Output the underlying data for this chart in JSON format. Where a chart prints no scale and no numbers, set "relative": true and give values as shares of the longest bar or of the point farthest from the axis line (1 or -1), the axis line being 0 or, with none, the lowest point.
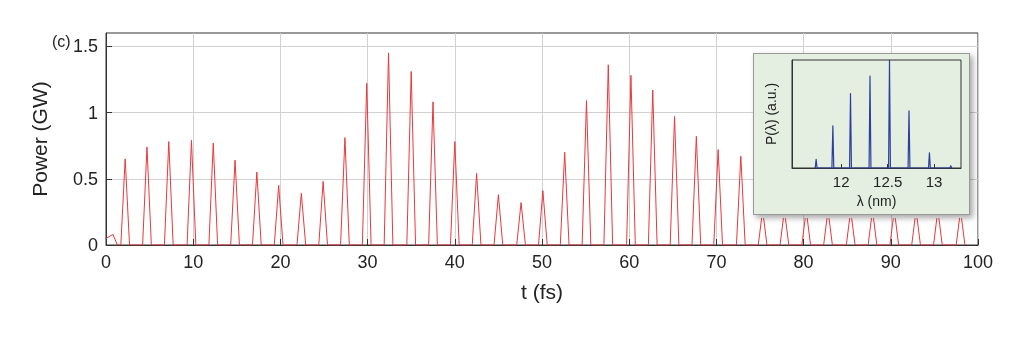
{
  "chart_data": [
    {
      "type": "line",
      "xlabel": "t (fs)",
      "ylabel": "Power (GW)",
      "annotations": [
        "(c)"
      ],
      "color": "#e8383d",
      "x": [
        0,
        0.8,
        1.3,
        1.7,
        2.2,
        2.7,
        4.2,
        4.7,
        5.2,
        6.7,
        7.2,
        7.7,
        9.3,
        9.8,
        10.3,
        11.8,
        12.3,
        12.8,
        14.3,
        14.8,
        15.3,
        16.8,
        17.3,
        17.8,
        19.3,
        19.8,
        20.3,
        21.9,
        22.4,
        22.9,
        24.4,
        24.9,
        25.4,
        26.9,
        27.4,
        27.9,
        29.4,
        29.9,
        30.4,
        31.9,
        32.4,
        32.9,
        34.5,
        35.0,
        35.5,
        37.0,
        37.5,
        38.0,
        39.5,
        40.0,
        40.5,
        42.0,
        42.5,
        43.0,
        44.5,
        45.0,
        45.5,
        47.1,
        47.6,
        48.1,
        49.6,
        50.1,
        50.6,
        52.1,
        52.6,
        53.1,
        54.6,
        55.1,
        55.6,
        57.1,
        57.6,
        58.1,
        59.7,
        60.2,
        60.7,
        62.2,
        62.7,
        63.2,
        64.7,
        65.2,
        65.7,
        67.2,
        67.7,
        68.2,
        69.7,
        70.2,
        70.7,
        72.3,
        72.8,
        73.3,
        74.8,
        75.18,
        75.3,
        75.42,
        75.8,
        77.3,
        77.68,
        77.8,
        77.92,
        78.3,
        79.8,
        80.18,
        80.3,
        80.42,
        80.8,
        82.3,
        82.68,
        82.8,
        82.92,
        83.3,
        84.9,
        85.28,
        85.4,
        85.52,
        85.9,
        87.4,
        87.78,
        87.9,
        88.02,
        88.4,
        89.9,
        90.28,
        90.4,
        90.52,
        90.9,
        92.4,
        92.78,
        92.9,
        93.02,
        93.4,
        94.9,
        95.28,
        95.4,
        95.52,
        95.9,
        97.5,
        97.88,
        98.0,
        98.12,
        98.5
      ],
      "values": [
        0.05,
        0.08,
        0,
        0,
        0.65,
        0,
        0,
        0.74,
        0,
        0,
        0.78,
        0,
        0,
        0.79,
        0,
        0,
        0.77,
        0,
        0,
        0.64,
        0,
        0,
        0.55,
        0,
        0,
        0.45,
        0,
        0,
        0.39,
        0,
        0,
        0.48,
        0,
        0,
        0.81,
        0,
        0,
        1.22,
        0,
        0,
        1.45,
        0,
        0,
        1.31,
        0,
        0,
        1.08,
        0,
        0,
        0.78,
        0,
        0,
        0.54,
        0,
        0,
        0.38,
        0,
        0,
        0.32,
        0,
        0,
        0.41,
        0,
        0,
        0.7,
        0,
        0,
        1.09,
        0,
        0,
        1.36,
        0,
        0,
        1.28,
        0,
        0,
        1.17,
        0,
        0,
        0.97,
        0,
        0,
        0.82,
        0,
        0,
        0.72,
        0,
        0,
        0.67,
        0,
        0,
        0.2,
        null,
        0.2,
        0,
        0,
        0.2,
        null,
        0.2,
        0,
        0,
        0.2,
        null,
        0.2,
        0,
        0,
        0.2,
        null,
        0.2,
        0,
        0,
        0.2,
        null,
        0.2,
        0,
        0,
        0.2,
        null,
        0.2,
        0,
        0,
        0.2,
        null,
        0.2,
        0,
        0,
        0.2,
        null,
        0.2,
        0,
        0,
        0.2,
        null,
        0.2,
        0,
        0,
        0.2,
        null,
        0.2,
        0
      ],
      "xlim": [
        0,
        100
      ],
      "ylim": [
        0,
        1.6
      ],
      "xticks": [
        0,
        10,
        20,
        30,
        40,
        50,
        60,
        70,
        80,
        90,
        100
      ],
      "yticks": [
        0,
        0.5,
        1,
        1.5
      ],
      "grid": true
    },
    {
      "type": "line",
      "xlabel": "λ (nm)",
      "ylabel": "P(λ) (a.u.)",
      "color": "#2c3e9e",
      "relative": true,
      "tick_labels": "x",
      "x": [
        11.72,
        11.73,
        11.74,
        11.9,
        11.91,
        11.92,
        12.09,
        12.1,
        12.11,
        12.3,
        12.31,
        12.32,
        12.51,
        12.52,
        12.53,
        12.72,
        12.73,
        12.74,
        12.94,
        12.95,
        12.96,
        13.17,
        13.18,
        13.19
      ],
      "values": [
        0,
        0.08,
        0,
        0,
        0.39,
        0,
        0,
        0.69,
        0,
        0,
        0.85,
        0,
        0,
        1,
        0,
        0,
        0.53,
        0,
        0,
        0.14,
        0,
        0,
        0.02,
        0
      ],
      "xlim": [
        11.47,
        13.29
      ],
      "xticks": [
        12,
        12.5,
        13
      ]
    }
  ]
}
